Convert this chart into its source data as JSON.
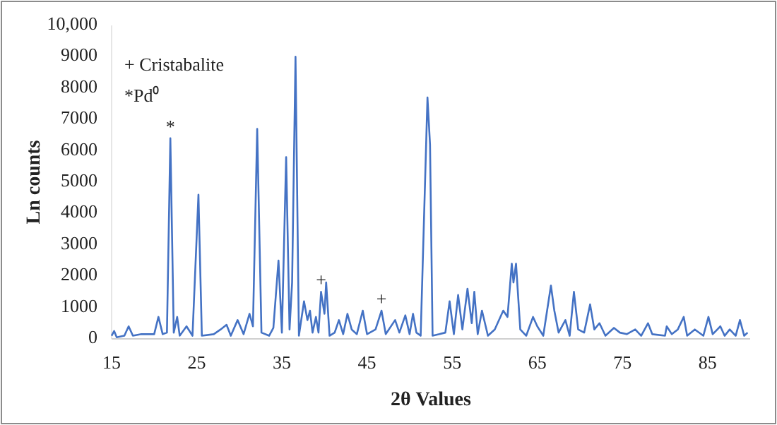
{
  "chart_data": {
    "type": "line",
    "xlabel": "2θ Values",
    "ylabel": "Ln counts",
    "xlim": [
      15,
      90
    ],
    "xticks": [
      15,
      25,
      35,
      45,
      55,
      65,
      75,
      85
    ],
    "ylim": [
      0,
      10000
    ],
    "yticks": [
      0,
      1000,
      2000,
      3000,
      4000,
      5000,
      6000,
      7000,
      8000,
      9000,
      {
        "value": 10000,
        "label": "10,000"
      }
    ],
    "grid": false,
    "marker": "none",
    "line_style": "solid",
    "annotations": [
      "+ Cristabalite",
      "*Pd⁰",
      {
        "text": "*",
        "x": 21.9,
        "y": 6400
      },
      {
        "text": "+",
        "x": 39.6,
        "y": 1500
      },
      {
        "text": "+",
        "x": 46.7,
        "y": 900
      }
    ],
    "series": [
      {
        "color": "#4472c4",
        "x": [
          15,
          15.3,
          15.6,
          16.5,
          17,
          17.5,
          18.5,
          20,
          20.5,
          21,
          21.5,
          21.9,
          22.3,
          22.7,
          23,
          23.8,
          24.5,
          25.2,
          25.6,
          27,
          27.8,
          28.5,
          29,
          29.8,
          30.5,
          31.2,
          31.6,
          32.1,
          32.6,
          33.5,
          34,
          34.6,
          35,
          35.5,
          35.9,
          36.2,
          36.6,
          37,
          37.6,
          38,
          38.3,
          38.6,
          39,
          39.3,
          39.6,
          40,
          40.2,
          40.6,
          41.2,
          41.7,
          42.2,
          42.7,
          43.2,
          43.8,
          44.5,
          45,
          46,
          46.7,
          47.2,
          48.3,
          48.8,
          49.5,
          50,
          50.4,
          50.8,
          51.3,
          52.1,
          52.4,
          52.7,
          53.5,
          54.2,
          54.7,
          55.2,
          55.7,
          56.2,
          56.8,
          57.3,
          57.6,
          58,
          58.5,
          59.2,
          60,
          61,
          61.5,
          62,
          62.2,
          62.5,
          63,
          63.7,
          64.5,
          65,
          65.7,
          66.6,
          67,
          67.5,
          68.3,
          68.8,
          69.3,
          69.8,
          70.5,
          71.2,
          71.7,
          72.3,
          73,
          74,
          74.7,
          75.5,
          76.5,
          77.2,
          78,
          78.5,
          80,
          80.2,
          80.8,
          81.5,
          82.2,
          82.6,
          83.5,
          84.5,
          85.1,
          85.6,
          86.5,
          87,
          87.6,
          88.3,
          88.8,
          89.3,
          89.7
        ],
        "values": [
          100,
          250,
          50,
          100,
          400,
          100,
          150,
          150,
          700,
          150,
          200,
          6400,
          200,
          700,
          100,
          400,
          100,
          4600,
          100,
          150,
          300,
          450,
          100,
          600,
          150,
          800,
          400,
          6700,
          200,
          100,
          350,
          2500,
          200,
          5800,
          300,
          1800,
          9000,
          100,
          1200,
          600,
          900,
          200,
          700,
          200,
          1500,
          800,
          1800,
          100,
          200,
          600,
          150,
          800,
          300,
          150,
          900,
          150,
          300,
          900,
          150,
          600,
          200,
          750,
          150,
          800,
          200,
          100,
          7700,
          6200,
          100,
          150,
          200,
          1200,
          150,
          1400,
          300,
          1600,
          500,
          1500,
          150,
          900,
          100,
          300,
          900,
          700,
          2400,
          1800,
          2400,
          300,
          100,
          700,
          400,
          100,
          1700,
          900,
          200,
          600,
          100,
          1500,
          300,
          200,
          1100,
          300,
          500,
          100,
          350,
          200,
          150,
          300,
          100,
          500,
          150,
          100,
          400,
          150,
          300,
          700,
          100,
          300,
          100,
          700,
          150,
          400,
          100,
          300,
          100,
          600,
          100,
          200
        ]
      }
    ]
  }
}
